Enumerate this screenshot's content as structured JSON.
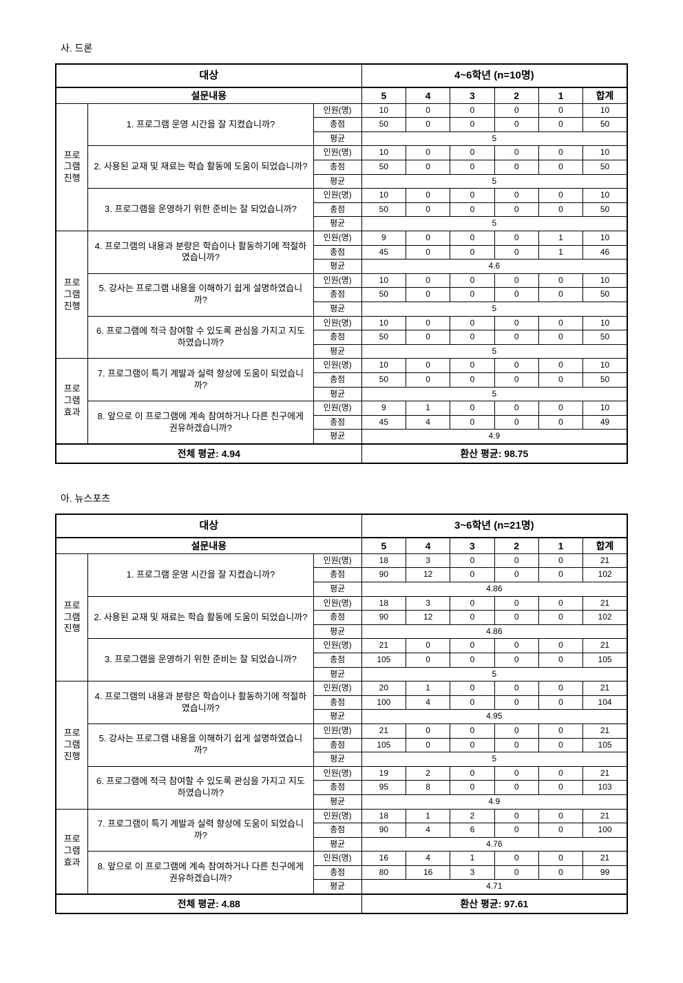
{
  "sections": [
    {
      "title": "사. 드론",
      "target_label": "대상",
      "target_value": "4~6학년 (n=10명)",
      "content_label": "설문내용",
      "score_cols": [
        "5",
        "4",
        "3",
        "2",
        "1"
      ],
      "sum_label": "합계",
      "measures": {
        "count": "인원(명)",
        "score": "총점",
        "avg": "평균"
      },
      "groups": [
        {
          "category": "프로\n그램\n진행",
          "questions": [
            {
              "text": "1. 프로그램 운영 시간을 잘 지켰습니까?",
              "count": [
                10,
                0,
                0,
                0,
                0,
                10
              ],
              "score": [
                50,
                0,
                0,
                0,
                0,
                50
              ],
              "avg": "5"
            },
            {
              "text": "2. 사용된 교재 및 재료는 학습 활동에 도움이 되었습니까?",
              "count": [
                10,
                0,
                0,
                0,
                0,
                10
              ],
              "score": [
                50,
                0,
                0,
                0,
                0,
                50
              ],
              "avg": "5"
            },
            {
              "text": "3. 프로그램을 운영하기 위한 준비는 잘 되었습니까?",
              "count": [
                10,
                0,
                0,
                0,
                0,
                10
              ],
              "score": [
                50,
                0,
                0,
                0,
                0,
                50
              ],
              "avg": "5"
            }
          ]
        },
        {
          "category": "프로\n그램\n진행",
          "questions": [
            {
              "text": "4. 프로그램의 내용과 분량은 학습이나 활동하기에 적절하였습니까?",
              "count": [
                9,
                0,
                0,
                0,
                1,
                10
              ],
              "score": [
                45,
                0,
                0,
                0,
                1,
                46
              ],
              "avg": "4.6"
            },
            {
              "text": "5. 강사는 프로그램 내용을 이해하기 쉽게 설명하였습니까?",
              "count": [
                10,
                0,
                0,
                0,
                0,
                10
              ],
              "score": [
                50,
                0,
                0,
                0,
                0,
                50
              ],
              "avg": "5"
            },
            {
              "text": "6. 프로그램에 적극 참여할 수 있도록 관심을 가지고 지도하였습니까?",
              "count": [
                10,
                0,
                0,
                0,
                0,
                10
              ],
              "score": [
                50,
                0,
                0,
                0,
                0,
                50
              ],
              "avg": "5"
            }
          ]
        },
        {
          "category": "프로\n그램\n효과",
          "questions": [
            {
              "text": "7. 프로그램이 특기 계발과 실력 향상에 도움이 되었습니까?",
              "count": [
                10,
                0,
                0,
                0,
                0,
                10
              ],
              "score": [
                50,
                0,
                0,
                0,
                0,
                50
              ],
              "avg": "5"
            },
            {
              "text": "8. 앞으로 이 프로그램에 계속 참여하거나 다른 친구에게 권유하겠습니까?",
              "count": [
                9,
                1,
                0,
                0,
                0,
                10
              ],
              "score": [
                45,
                4,
                0,
                0,
                0,
                49
              ],
              "avg": "4.9"
            }
          ]
        }
      ],
      "footer_left": "전체 평균: 4.94",
      "footer_right": "환산 평균: 98.75"
    },
    {
      "title": "아. 뉴스포츠",
      "target_label": "대상",
      "target_value": "3~6학년 (n=21명)",
      "content_label": "설문내용",
      "score_cols": [
        "5",
        "4",
        "3",
        "2",
        "1"
      ],
      "sum_label": "합계",
      "measures": {
        "count": "인원(명)",
        "score": "총점",
        "avg": "평균"
      },
      "groups": [
        {
          "category": "프로\n그램\n진행",
          "questions": [
            {
              "text": "1. 프로그램 운영 시간을 잘 지켰습니까?",
              "count": [
                18,
                3,
                0,
                0,
                0,
                21
              ],
              "score": [
                90,
                12,
                0,
                0,
                0,
                102
              ],
              "avg": "4.86"
            },
            {
              "text": "2. 사용된 교재 및 재료는 학습 활동에 도움이 되었습니까?",
              "count": [
                18,
                3,
                0,
                0,
                0,
                21
              ],
              "score": [
                90,
                12,
                0,
                0,
                0,
                102
              ],
              "avg": "4.86"
            },
            {
              "text": "3. 프로그램을 운영하기 위한 준비는 잘 되었습니까?",
              "count": [
                21,
                0,
                0,
                0,
                0,
                21
              ],
              "score": [
                105,
                0,
                0,
                0,
                0,
                105
              ],
              "avg": "5"
            }
          ]
        },
        {
          "category": "프로\n그램\n진행",
          "questions": [
            {
              "text": "4. 프로그램의 내용과 분량은 학습이나 활동하기에 적절하였습니까?",
              "count": [
                20,
                1,
                0,
                0,
                0,
                21
              ],
              "score": [
                100,
                4,
                0,
                0,
                0,
                104
              ],
              "avg": "4.95"
            },
            {
              "text": "5. 강사는 프로그램 내용을 이해하기 쉽게 설명하였습니까?",
              "count": [
                21,
                0,
                0,
                0,
                0,
                21
              ],
              "score": [
                105,
                0,
                0,
                0,
                0,
                105
              ],
              "avg": "5"
            },
            {
              "text": "6. 프로그램에 적극 참여할 수 있도록 관심을 가지고 지도하였습니까?",
              "count": [
                19,
                2,
                0,
                0,
                0,
                21
              ],
              "score": [
                95,
                8,
                0,
                0,
                0,
                103
              ],
              "avg": "4.9"
            }
          ]
        },
        {
          "category": "프로\n그램\n효과",
          "questions": [
            {
              "text": "7. 프로그램이 특기 계발과 실력 향상에 도움이 되었습니까?",
              "count": [
                18,
                1,
                2,
                0,
                0,
                21
              ],
              "score": [
                90,
                4,
                6,
                0,
                0,
                100
              ],
              "avg": "4.76"
            },
            {
              "text": "8. 앞으로 이 프로그램에 계속 참여하거나 다른 친구에게 권유하겠습니까?",
              "count": [
                16,
                4,
                1,
                0,
                0,
                21
              ],
              "score": [
                80,
                16,
                3,
                0,
                0,
                99
              ],
              "avg": "4.71"
            }
          ]
        }
      ],
      "footer_left": "전체 평균: 4.88",
      "footer_right": "환산 평균: 97.61"
    }
  ]
}
